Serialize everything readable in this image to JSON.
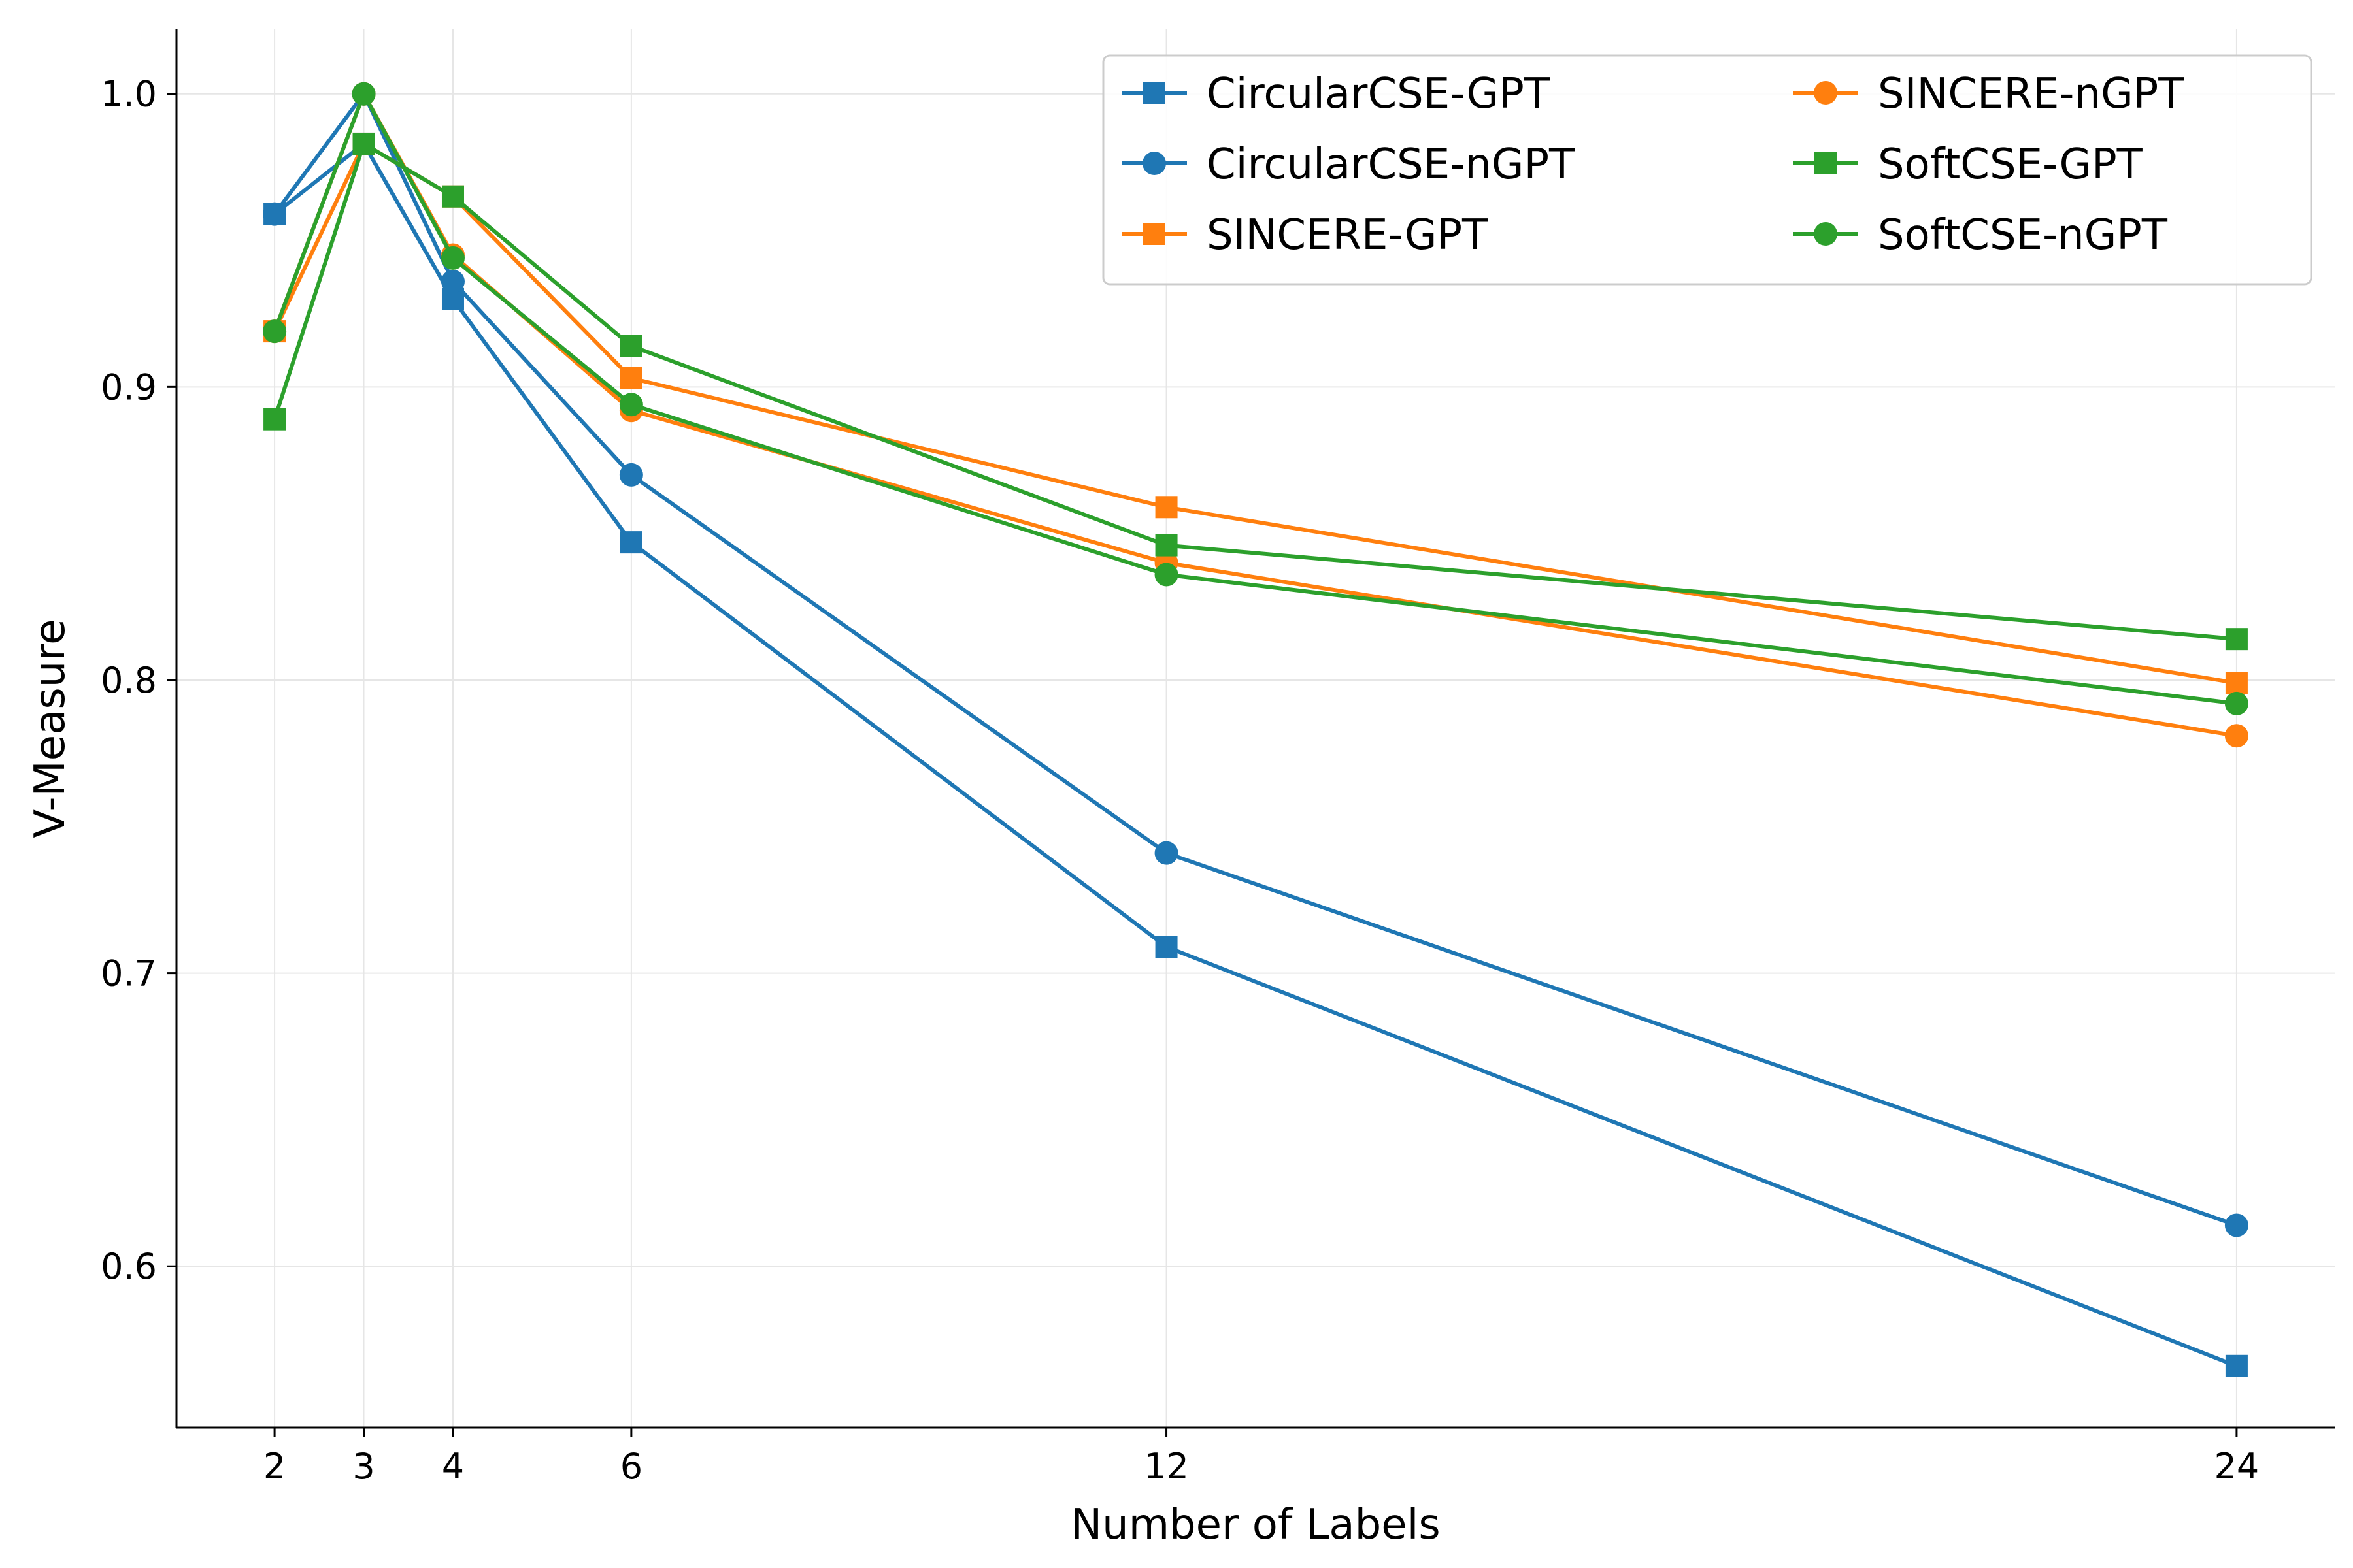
{
  "chart_data": {
    "type": "line",
    "title": "",
    "xlabel": "Number of Labels",
    "ylabel": "V-Measure",
    "x": [
      2,
      3,
      4,
      6,
      12,
      24
    ],
    "xticks": [
      "2",
      "3",
      "4",
      "6",
      "12",
      "24"
    ],
    "yticks": [
      "0.6",
      "0.7",
      "0.8",
      "0.9",
      "1.0"
    ],
    "ytick_values": [
      0.6,
      0.7,
      0.8,
      0.9,
      1.0
    ],
    "xlim": [
      0.9,
      25.1
    ],
    "ylim": [
      0.545,
      1.022
    ],
    "grid": true,
    "legend_position": "top-right",
    "series": [
      {
        "name": "CircularCSE-GPT",
        "color": "#1f77b4",
        "marker": "square",
        "values": [
          0.959,
          0.983,
          0.93,
          0.847,
          0.709,
          0.566
        ]
      },
      {
        "name": "CircularCSE-nGPT",
        "color": "#1f77b4",
        "marker": "circle",
        "values": [
          0.959,
          1.0,
          0.936,
          0.87,
          0.741,
          0.614
        ]
      },
      {
        "name": "SINCERE-GPT",
        "color": "#ff7f0e",
        "marker": "square",
        "values": [
          0.919,
          0.983,
          0.965,
          0.903,
          0.859,
          0.799
        ]
      },
      {
        "name": "SINCERE-nGPT",
        "color": "#ff7f0e",
        "marker": "circle",
        "values": [
          0.919,
          1.0,
          0.945,
          0.892,
          0.84,
          0.781
        ]
      },
      {
        "name": "SoftCSE-GPT",
        "color": "#2ca02c",
        "marker": "square",
        "values": [
          0.889,
          0.983,
          0.965,
          0.914,
          0.846,
          0.814
        ]
      },
      {
        "name": "SoftCSE-nGPT",
        "color": "#2ca02c",
        "marker": "circle",
        "values": [
          0.919,
          1.0,
          0.944,
          0.894,
          0.836,
          0.792
        ]
      }
    ]
  }
}
